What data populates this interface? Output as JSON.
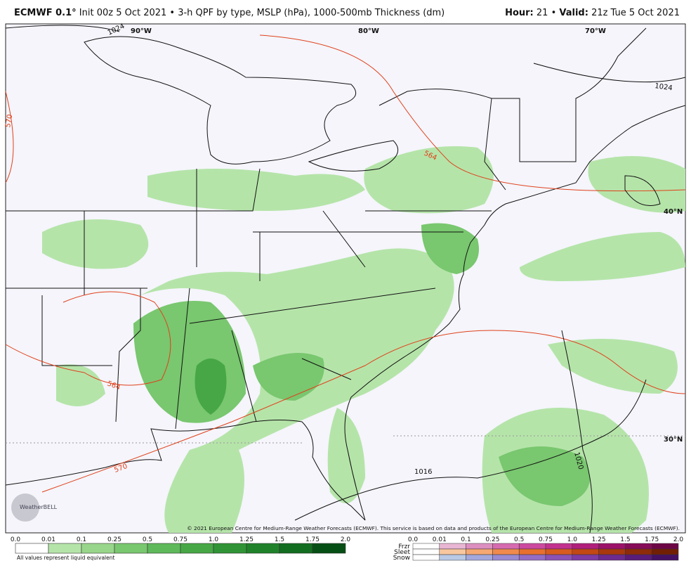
{
  "header": {
    "left_bold": "ECMWF 0.1°",
    "left_rest": "Init 00z 5 Oct 2021 • 3-h QPF by type, MSLP (hPa), 1000-500mb Thickness (dm)",
    "hour_label": "Hour:",
    "hour_value": "21 •",
    "valid_label": "Valid:",
    "valid_value": "21z Tue 5 Oct 2021"
  },
  "map": {
    "labels": [
      "90°W",
      "80°W",
      "70°W",
      "40°N",
      "30°N",
      "1024",
      "1024",
      "570",
      "564",
      "564",
      "570",
      "1016",
      "1020"
    ],
    "copyright": "© 2021 European Centre for Medium-Range Weather Forecasts (ECMWF). This service is based on data and products of the European Centre for Medium-Range Weather Forecasts (ECMWF).",
    "logo": "WeatherBELL"
  },
  "legend": {
    "ticks": [
      "0.0",
      "0.01",
      "0.1",
      "0.25",
      "0.5",
      "0.75",
      "1.0",
      "1.25",
      "1.5",
      "1.75",
      "2.0"
    ],
    "rain_colors": [
      "#ffffff",
      "#b5e4a9",
      "#98d68b",
      "#79c76f",
      "#5eb95a",
      "#47a746",
      "#309436",
      "#1f822a",
      "#126d20",
      "#064f14"
    ],
    "note": "All values represent liquid equivalent",
    "ptype": [
      {
        "name": "Frzr",
        "colors": [
          "#ffffff",
          "#e8b6d2",
          "#dd8fc0",
          "#d66bb0",
          "#cc4aa0",
          "#c2328f",
          "#b01f7c",
          "#9c126a",
          "#860b58",
          "#6e0646"
        ]
      },
      {
        "name": "Sleet",
        "colors": [
          "#ffffff",
          "#f9c79f",
          "#f6a873",
          "#f08a4c",
          "#e8702e",
          "#d95b1e",
          "#c34814",
          "#a9380d",
          "#8e2b08",
          "#721f04"
        ]
      },
      {
        "name": "Snow",
        "colors": [
          "#ffffff",
          "#b9c9e6",
          "#a3a8dc",
          "#9a8ad1",
          "#946cc4",
          "#8c52b4",
          "#7e3ba2",
          "#6c2a8e",
          "#591c79",
          "#441163"
        ]
      }
    ]
  }
}
